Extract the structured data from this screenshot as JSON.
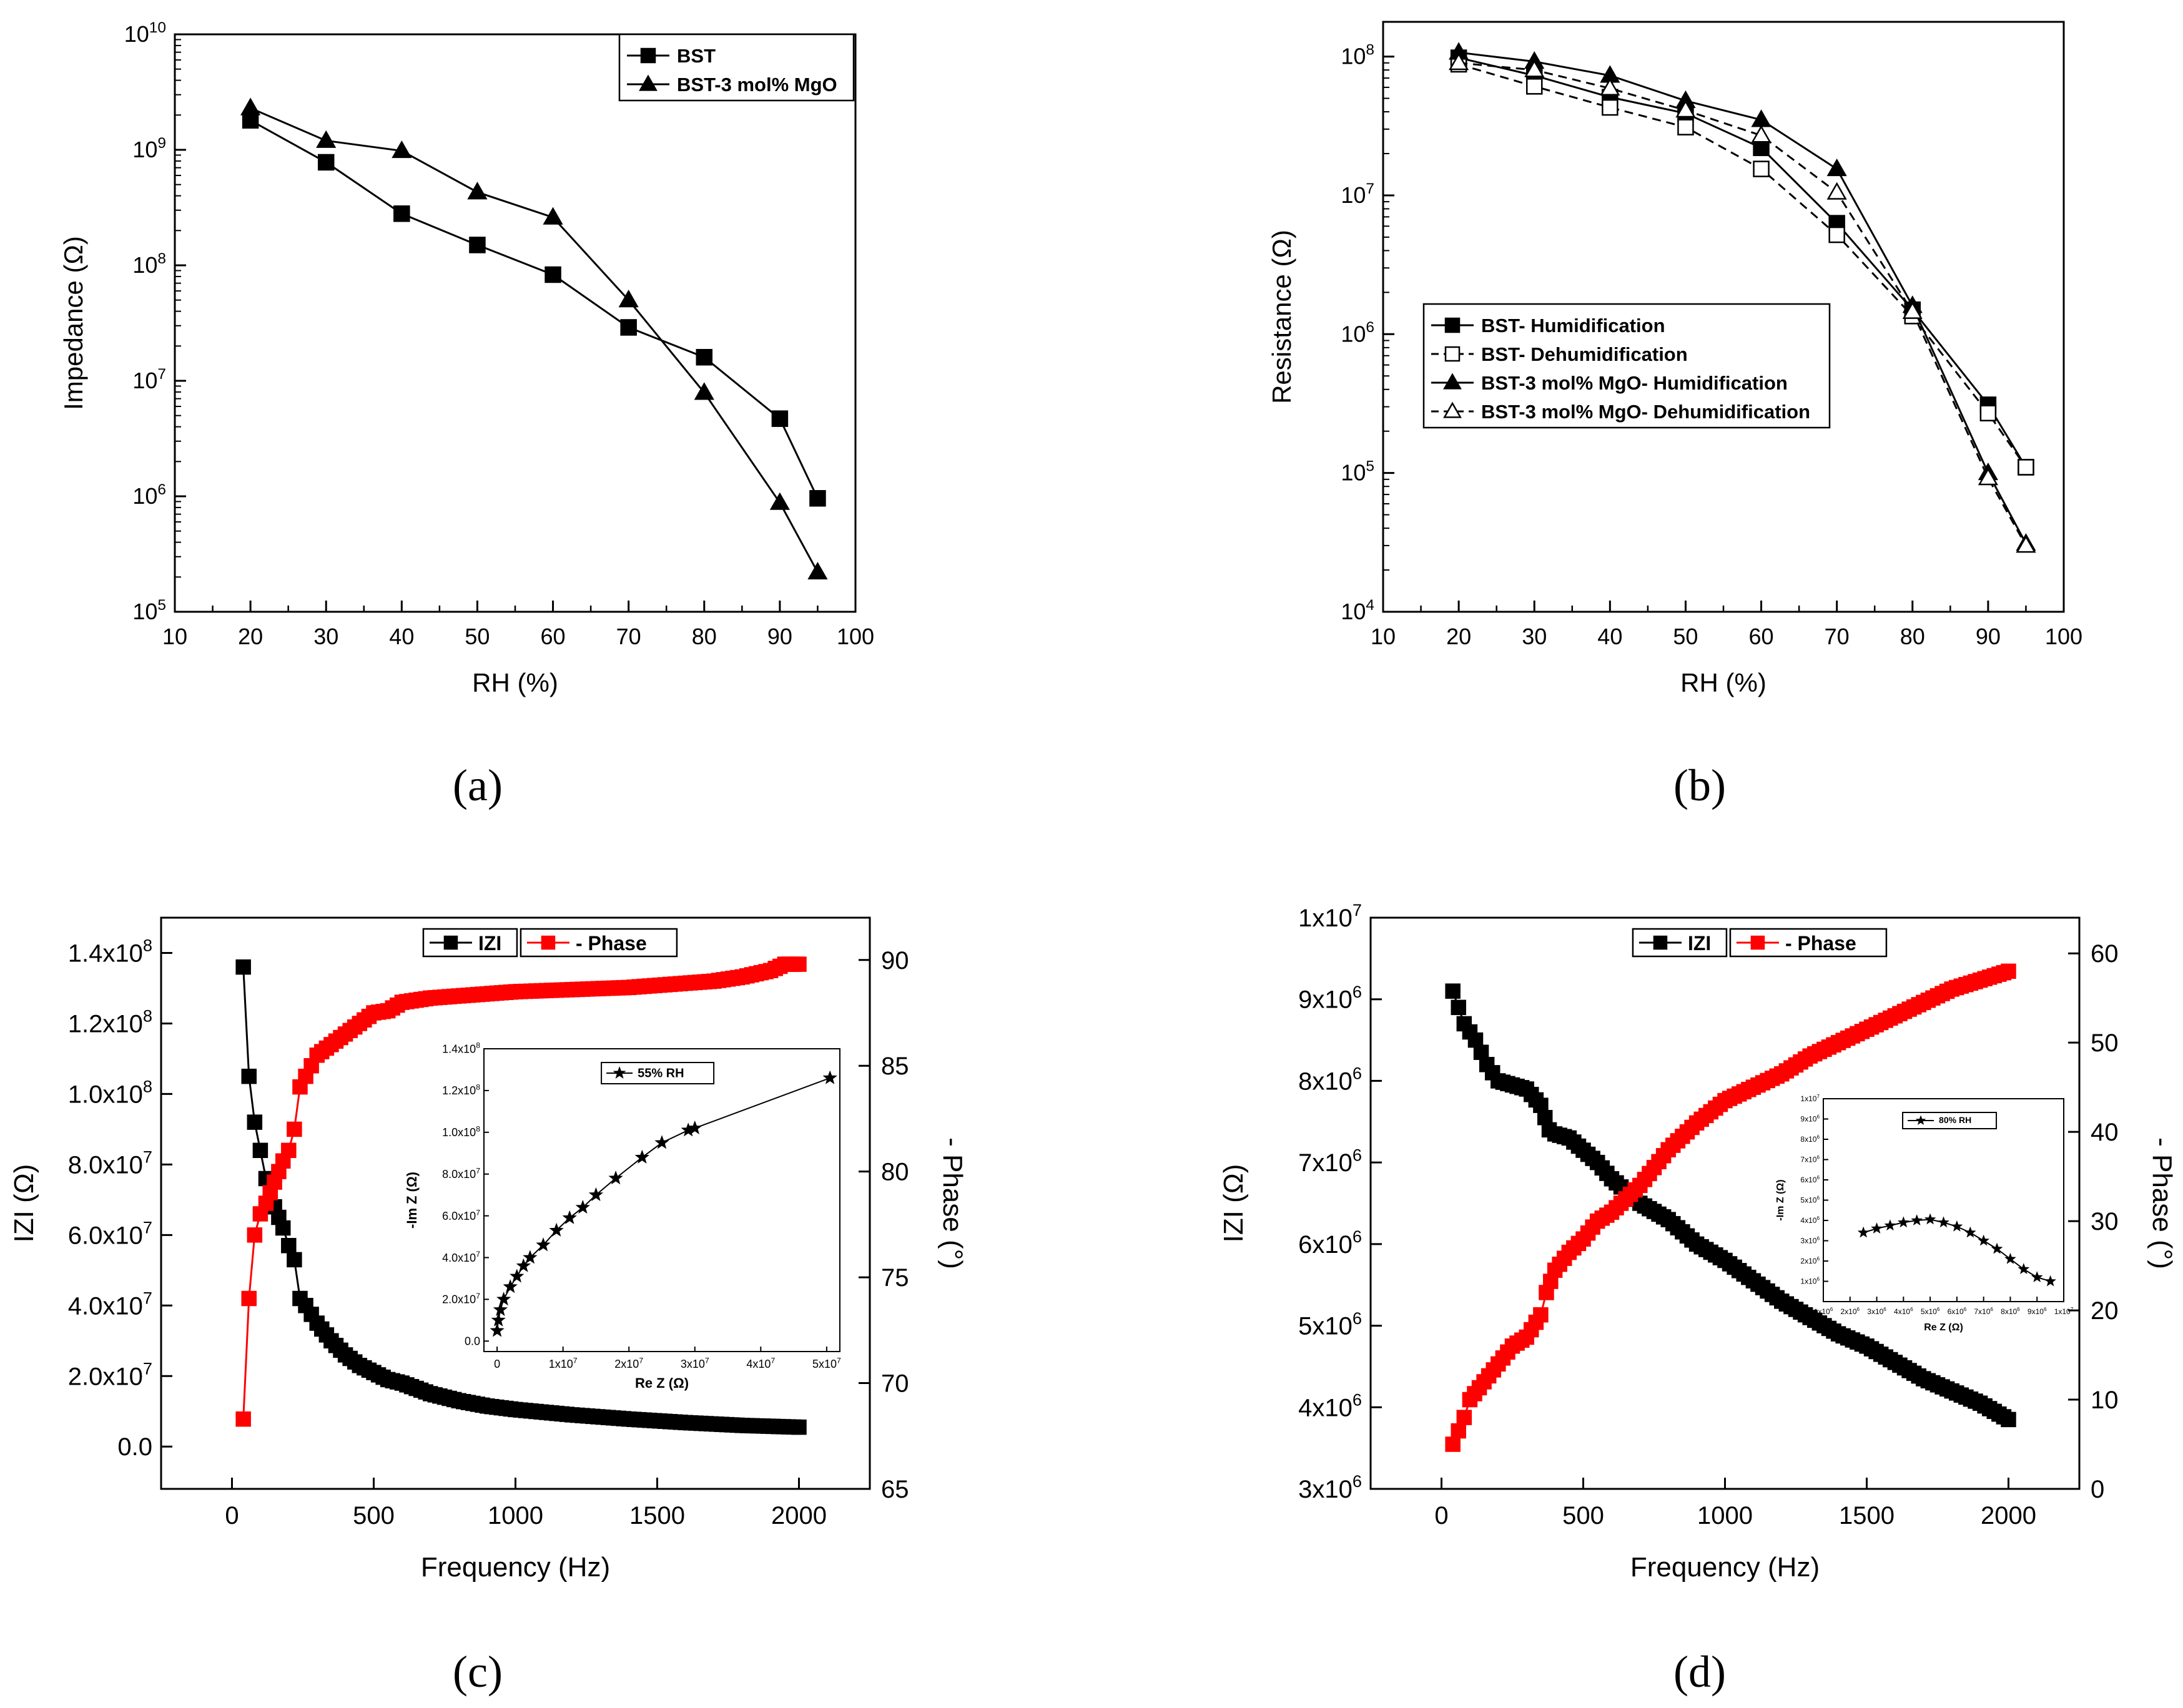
{
  "figure": {
    "panels": [
      {
        "label": "(a)"
      },
      {
        "label": "(b)"
      },
      {
        "label": "(c)"
      },
      {
        "label": "(d)"
      }
    ]
  },
  "chart_data": [
    {
      "id": "a",
      "type": "line",
      "xlabel": "RH (%)",
      "ylabel": "Impedance (Ω)",
      "yscale": "log",
      "xlim": [
        10,
        100
      ],
      "ylim": [
        5,
        10
      ],
      "xticks": [
        10,
        20,
        30,
        40,
        50,
        60,
        70,
        80,
        90,
        100
      ],
      "legend_position": "top-right",
      "series": [
        {
          "name": "BST",
          "marker": "square",
          "filled": true,
          "dashed": false,
          "x": [
            20,
            30,
            40,
            50,
            60,
            70,
            80,
            90,
            95
          ],
          "y": [
            1800000000.0,
            780000000.0,
            280000000.0,
            150000000.0,
            83000000.0,
            29000000.0,
            16000000.0,
            4700000.0,
            960000.0
          ]
        },
        {
          "name": "BST-3 mol% MgO",
          "marker": "triangle",
          "filled": true,
          "dashed": false,
          "x": [
            20,
            30,
            40,
            50,
            60,
            70,
            80,
            90,
            95
          ],
          "y": [
            2300000000.0,
            1200000000.0,
            980000000.0,
            430000000.0,
            260000000.0,
            50000000.0,
            7900000.0,
            880000.0,
            220000.0
          ]
        }
      ]
    },
    {
      "id": "b",
      "type": "line",
      "xlabel": "RH (%)",
      "ylabel": "Resistance (Ω)",
      "yscale": "log",
      "xlim": [
        10,
        100
      ],
      "ylim": [
        4,
        8.25
      ],
      "xticks": [
        10,
        20,
        30,
        40,
        50,
        60,
        70,
        80,
        90,
        100
      ],
      "legend_position": "middle-left",
      "series": [
        {
          "name": "BST- Humidification",
          "marker": "square",
          "filled": true,
          "dashed": false,
          "x": [
            20,
            30,
            40,
            50,
            60,
            70,
            80,
            90,
            95
          ],
          "y": [
            98000000.0,
            73000000.0,
            51000000.0,
            39000000.0,
            22000000.0,
            6300000.0,
            1500000.0,
            310000.0,
            110000.0
          ]
        },
        {
          "name": "BST- Dehumidification",
          "marker": "square",
          "filled": false,
          "dashed": true,
          "x": [
            20,
            30,
            40,
            50,
            60,
            70,
            80,
            90,
            95
          ],
          "y": [
            88000000.0,
            61000000.0,
            43000000.0,
            31000000.0,
            15500000.0,
            5200000.0,
            1350000.0,
            270000.0,
            110000.0
          ]
        },
        {
          "name": "BST-3 mol% MgO- Humidification",
          "marker": "triangle",
          "filled": true,
          "dashed": false,
          "x": [
            20,
            30,
            40,
            50,
            60,
            70,
            80,
            90,
            95
          ],
          "y": [
            107000000.0,
            92000000.0,
            73000000.0,
            48000000.0,
            35000000.0,
            15500000.0,
            1600000.0,
            100000.0,
            31000.0
          ]
        },
        {
          "name": "BST-3 mol% MgO- Dehumidification",
          "marker": "triangle",
          "filled": false,
          "dashed": true,
          "x": [
            20,
            30,
            40,
            50,
            60,
            70,
            80,
            90,
            95
          ],
          "y": [
            90000000.0,
            80000000.0,
            59000000.0,
            41000000.0,
            27000000.0,
            10500000.0,
            1450000.0,
            92000.0,
            30000.0
          ]
        }
      ]
    },
    {
      "id": "c",
      "type": "scatter",
      "xlabel": "Frequency (Hz)",
      "ylabel": "IZI (Ω)",
      "y2label": "- Phase (°)",
      "xlim": [
        -250,
        2250
      ],
      "ylim": [
        -12000000.0,
        150000000.0
      ],
      "y2lim": [
        65,
        92
      ],
      "xticks": [
        0,
        500,
        1000,
        1500,
        2000
      ],
      "yticks": [
        0,
        20000000.0,
        40000000.0,
        60000000.0,
        80000000.0,
        100000000.0,
        120000000.0,
        140000000.0
      ],
      "ytick_labels": [
        "0.0",
        "2.0x10^7",
        "4.0x10^7",
        "6.0x10^7",
        "8.0x10^7",
        "1.0x10^8",
        "1.2x10^8",
        "1.4x10^8"
      ],
      "y2ticks": [
        65,
        70,
        75,
        80,
        85,
        90
      ],
      "legend_position": "top-center",
      "series": [
        {
          "name": "IZI",
          "color": "#000000",
          "axis": "left",
          "x": [
            40,
            60,
            80,
            100,
            120,
            150,
            180,
            200,
            220,
            240,
            260,
            300,
            350,
            400,
            450,
            500,
            550,
            600,
            700,
            800,
            900,
            1000,
            1200,
            1400,
            1600,
            1800,
            2000
          ],
          "y": [
            136000000.0,
            105000000.0,
            92000000.0,
            84000000.0,
            76000000.0,
            68000000.0,
            62000000.0,
            57000000.0,
            53000000.0,
            42000000.0,
            40000000.0,
            35000000.0,
            30000000.0,
            26000000.0,
            23000000.0,
            21000000.0,
            19000000.0,
            18000000.0,
            15000000.0,
            13000000.0,
            11500000.0,
            10500000.0,
            9000000.0,
            7800000.0,
            6800000.0,
            6000000.0,
            5500000.0
          ]
        },
        {
          "name": "- Phase",
          "color": "#ff0000",
          "axis": "right",
          "x": [
            40,
            60,
            80,
            100,
            120,
            150,
            180,
            200,
            220,
            240,
            260,
            300,
            350,
            400,
            450,
            500,
            550,
            600,
            700,
            800,
            900,
            1000,
            1200,
            1400,
            1600,
            1700,
            1800,
            1900,
            1950,
            2000
          ],
          "y": [
            68.3,
            74.0,
            77.0,
            78.0,
            78.5,
            79.5,
            80.5,
            81.0,
            82.0,
            84.0,
            84.5,
            85.5,
            86.0,
            86.5,
            87.0,
            87.5,
            87.6,
            88.0,
            88.2,
            88.3,
            88.4,
            88.5,
            88.6,
            88.7,
            88.9,
            89.0,
            89.2,
            89.5,
            89.8,
            89.8
          ]
        }
      ],
      "inset": {
        "type": "line",
        "xlabel": "Re Z (Ω)",
        "ylabel": "-Im Z (Ω)",
        "legend": "55% RH",
        "xlim": [
          -2000000.0,
          52000000.0
        ],
        "ylim": [
          -5000000.0,
          140000000.0
        ],
        "xticks": [
          0,
          10000000.0,
          20000000.0,
          30000000.0,
          40000000.0,
          50000000.0
        ],
        "xtick_labels": [
          "0",
          "1x10^7",
          "2x10^7",
          "3x10^7",
          "4x10^7",
          "5x10^7"
        ],
        "yticks": [
          0,
          20000000.0,
          40000000.0,
          60000000.0,
          80000000.0,
          100000000.0,
          120000000.0,
          140000000.0
        ],
        "ytick_labels": [
          "0.0",
          "2.0x10^7",
          "4.0x10^7",
          "6.0x10^7",
          "8.0x10^7",
          "1.0x10^8",
          "1.2x10^8",
          "1.4x10^8"
        ],
        "x": [
          0,
          200000.0,
          500000.0,
          1000000.0,
          2000000.0,
          3000000.0,
          4000000.0,
          5000000.0,
          7000000.0,
          9000000.0,
          11000000.0,
          13000000.0,
          15000000.0,
          18000000.0,
          22000000.0,
          25000000.0,
          29000000.0,
          30000000.0,
          50500000.0
        ],
        "y": [
          5000000.0,
          10000000.0,
          15000000.0,
          20000000.0,
          26000000.0,
          31000000.0,
          36000000.0,
          40000000.0,
          46000000.0,
          53000000.0,
          59000000.0,
          64000000.0,
          70000000.0,
          78000000.0,
          88000000.0,
          95000000.0,
          101000000.0,
          102000000.0,
          126000000.0
        ]
      }
    },
    {
      "id": "d",
      "type": "scatter",
      "xlabel": "Frequency (Hz)",
      "ylabel": "IZI (Ω)",
      "y2label": "- Phase (°)",
      "xlim": [
        -250,
        2250
      ],
      "ylim": [
        3000000.0,
        10000000.0
      ],
      "y2lim": [
        0,
        64
      ],
      "xticks": [
        0,
        500,
        1000,
        1500,
        2000
      ],
      "yticks": [
        3000000.0,
        4000000.0,
        5000000.0,
        6000000.0,
        7000000.0,
        8000000.0,
        9000000.0,
        10000000.0
      ],
      "ytick_labels": [
        "3x10^6",
        "4x10^6",
        "5x10^6",
        "6x10^6",
        "7x10^6",
        "8x10^6",
        "9x10^6",
        "1x10^7"
      ],
      "y2ticks": [
        0,
        10,
        20,
        30,
        40,
        50,
        60
      ],
      "legend_position": "top-center",
      "series": [
        {
          "name": "IZI",
          "color": "#000000",
          "axis": "left",
          "x": [
            40,
            60,
            80,
            120,
            160,
            200,
            250,
            300,
            350,
            380,
            400,
            450,
            500,
            550,
            600,
            700,
            800,
            900,
            1000,
            1100,
            1200,
            1300,
            1400,
            1500,
            1600,
            1700,
            1800,
            1900,
            2000
          ],
          "y": [
            9100000.0,
            8900000.0,
            8700000.0,
            8500000.0,
            8200000.0,
            8000000.0,
            7950000.0,
            7900000.0,
            7700000.0,
            7400000.0,
            7350000.0,
            7300000.0,
            7150000.0,
            7000000.0,
            6800000.0,
            6500000.0,
            6300000.0,
            6000000.0,
            5800000.0,
            5550000.0,
            5300000.0,
            5100000.0,
            4900000.0,
            4750000.0,
            4550000.0,
            4350000.0,
            4200000.0,
            4050000.0,
            3850000.0
          ]
        },
        {
          "name": "- Phase",
          "color": "#ff0000",
          "axis": "right",
          "x": [
            40,
            60,
            80,
            100,
            150,
            200,
            250,
            300,
            350,
            370,
            400,
            450,
            500,
            550,
            600,
            650,
            700,
            750,
            800,
            900,
            1000,
            1100,
            1200,
            1300,
            1400,
            1500,
            1600,
            1700,
            1800,
            1900,
            2000
          ],
          "y": [
            5.0,
            6.5,
            8.0,
            10.0,
            12.0,
            14.0,
            16.0,
            17.0,
            19.5,
            22.0,
            24.5,
            26.5,
            28.0,
            30.0,
            31.0,
            32.5,
            34.0,
            36.0,
            38.0,
            41.0,
            43.5,
            45.0,
            46.5,
            48.5,
            50.0,
            51.5,
            53.0,
            54.5,
            56.0,
            57.0,
            58.0
          ]
        }
      ],
      "inset": {
        "type": "line",
        "xlabel": "Re Z (Ω)",
        "ylabel": "-Im Z (Ω)",
        "legend": "80% RH",
        "xlim": [
          1000000.0,
          10000000.0
        ],
        "ylim": [
          0,
          10000000.0
        ],
        "xticks": [
          1000000.0,
          2000000.0,
          3000000.0,
          4000000.0,
          5000000.0,
          6000000.0,
          7000000.0,
          8000000.0,
          9000000.0,
          10000000.0
        ],
        "xtick_labels": [
          "1x10^6",
          "2x10^6",
          "3x10^6",
          "4x10^6",
          "5x10^6",
          "6x10^6",
          "7x10^6",
          "8x10^6",
          "9x10^6",
          "1x10^7"
        ],
        "yticks": [
          1000000.0,
          2000000.0,
          3000000.0,
          4000000.0,
          5000000.0,
          6000000.0,
          7000000.0,
          8000000.0,
          9000000.0,
          10000000.0
        ],
        "ytick_labels": [
          "1x10^6",
          "2x10^6",
          "3x10^6",
          "4x10^6",
          "5x10^6",
          "6x10^6",
          "7x10^6",
          "8x10^6",
          "9x10^6",
          "1x10^7"
        ],
        "x": [
          2500000.0,
          3000000.0,
          3500000.0,
          4000000.0,
          4500000.0,
          5000000.0,
          5500000.0,
          6000000.0,
          6500000.0,
          7000000.0,
          7500000.0,
          8000000.0,
          8500000.0,
          9000000.0,
          9500000.0
        ],
        "y": [
          3400000.0,
          3600000.0,
          3750000.0,
          3900000.0,
          4000000.0,
          4050000.0,
          3900000.0,
          3700000.0,
          3400000.0,
          3000000.0,
          2600000.0,
          2100000.0,
          1600000.0,
          1200000.0,
          1000000.0
        ]
      }
    }
  ]
}
